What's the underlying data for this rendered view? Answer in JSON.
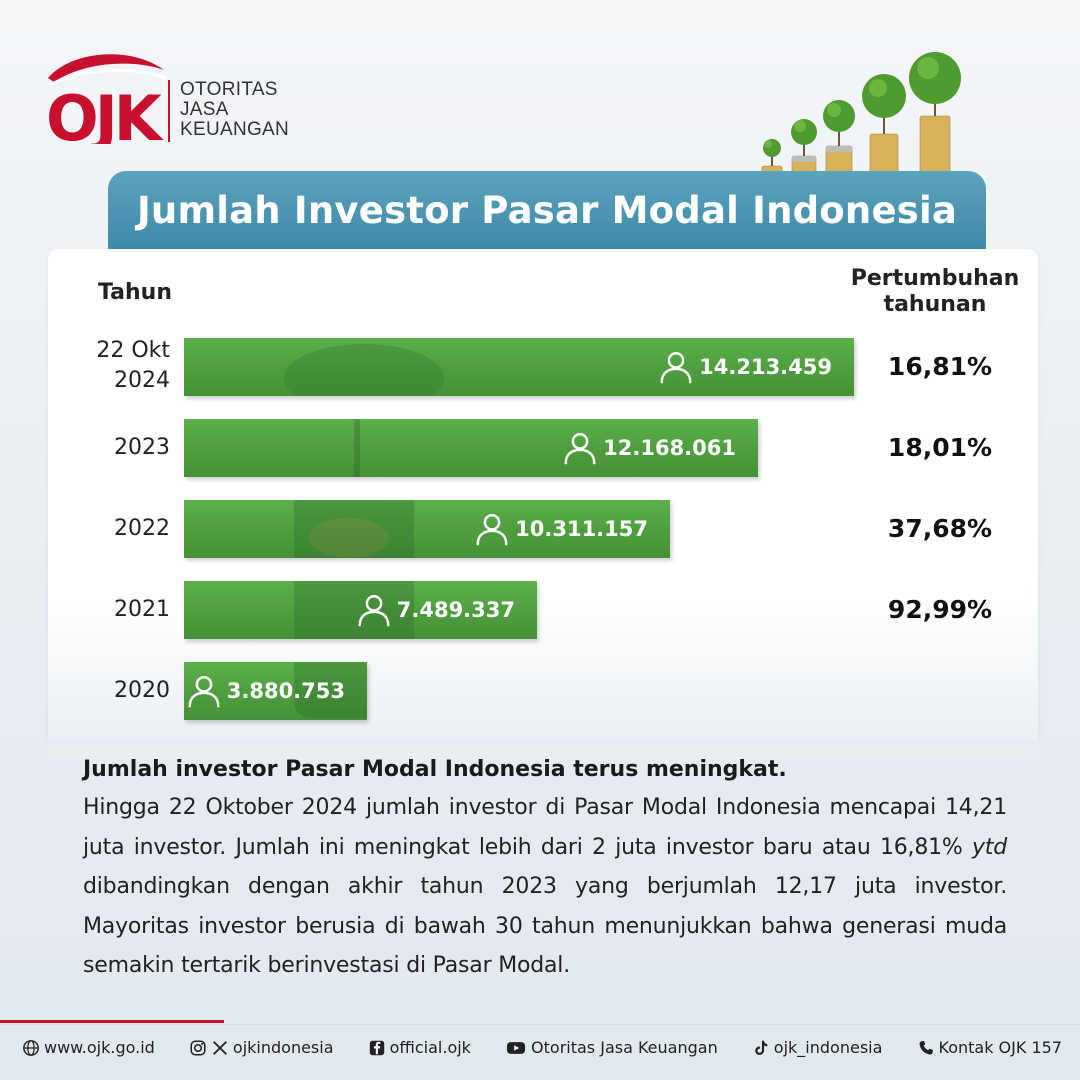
{
  "brand": {
    "logo_letters": "OJK",
    "name_lines": [
      "OTORITAS",
      "JASA",
      "KEUANGAN"
    ],
    "red": "#c8102e"
  },
  "title": "Jumlah Investor Pasar Modal Indonesia",
  "table_headers": {
    "year": "Tahun",
    "growth_line1": "Pertumbuhan",
    "growth_line2": "tahunan"
  },
  "chart_data": {
    "type": "bar",
    "orientation": "horizontal",
    "categories": [
      "22 Okt 2024",
      "2023",
      "2022",
      "2021",
      "2020"
    ],
    "category_lines": [
      [
        "22 Okt",
        "2024"
      ],
      [
        "2023"
      ],
      [
        "2022"
      ],
      [
        "2021"
      ],
      [
        "2020"
      ]
    ],
    "values": [
      14213459,
      12168061,
      10311157,
      7489337,
      3880753
    ],
    "value_labels": [
      "14.213.459",
      "12.168.061",
      "10.311.157",
      "7.489.337",
      "3.880.753"
    ],
    "growth": [
      "16,81%",
      "18,01%",
      "37,68%",
      "92,99%",
      ""
    ],
    "bar_color": "#4f9f3f"
  },
  "summary": {
    "heading": "Jumlah investor Pasar Modal Indonesia terus meningkat.",
    "para_before_ytd": "Hingga 22 Oktober 2024 jumlah investor di Pasar Modal Indonesia mencapai 14,21 juta investor. Jumlah ini meningkat lebih dari 2 juta investor baru atau 16,81% ",
    "ytd": "ytd",
    "para_after_ytd": " dibandingkan dengan akhir tahun 2023 yang berjumlah 12,17 juta investor. Mayoritas investor berusia di bawah 30 tahun menunjukkan bahwa generasi muda semakin tertarik berinvestasi di Pasar Modal."
  },
  "footer": {
    "website": "www.ojk.go.id",
    "instagram_x": "ojkindonesia",
    "facebook": "official.ojk",
    "youtube": "Otoritas Jasa Keuangan",
    "tiktok": "ojk_indonesia",
    "contact": "Kontak OJK 157",
    "icons": [
      "globe-icon",
      "instagram-icon",
      "x-icon",
      "facebook-icon",
      "youtube-icon",
      "tiktok-icon",
      "phone-icon"
    ]
  }
}
